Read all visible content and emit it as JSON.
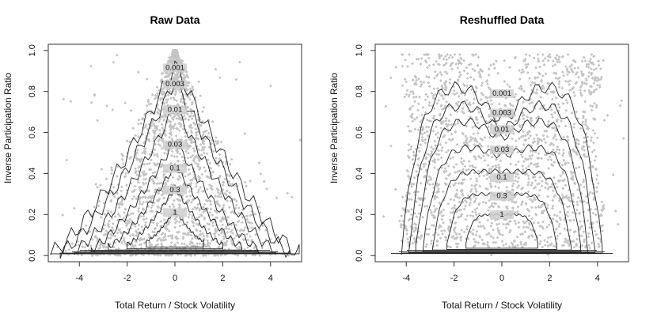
{
  "chart_data": [
    {
      "type": "scatter",
      "title": "Raw Data",
      "xlabel": "Total Return / Stock Volatility",
      "ylabel": "Inverse Participation Ratio",
      "xlim": [
        -5.3,
        5.3
      ],
      "ylim": [
        -0.03,
        1.03
      ],
      "xticks": [
        -4,
        -2,
        0,
        2,
        4
      ],
      "xtick_labels": [
        "-4",
        "-2",
        "0",
        "2",
        "4"
      ],
      "yticks": [
        0.0,
        0.2,
        0.4,
        0.6,
        0.8,
        1.0
      ],
      "ytick_labels": [
        "0.0",
        "0.2",
        "0.4",
        "0.6",
        "0.8",
        "1.0"
      ],
      "point_color": "#c4c4c4",
      "contour_color": "#222222",
      "contours": [
        {
          "level": "1",
          "label_x": 0.0,
          "label_y": 0.2
        },
        {
          "level": "0.3",
          "label_x": 0.0,
          "label_y": 0.31
        },
        {
          "level": "0.1",
          "label_x": 0.0,
          "label_y": 0.415
        },
        {
          "level": "0.03",
          "label_x": 0.0,
          "label_y": 0.53
        },
        {
          "level": "0.01",
          "label_x": 0.0,
          "label_y": 0.7
        },
        {
          "level": "0.003",
          "label_x": 0.0,
          "label_y": 0.825
        },
        {
          "level": "0.001",
          "label_x": 0.0,
          "label_y": 0.905
        }
      ]
    },
    {
      "type": "scatter",
      "title": "Reshuffled Data",
      "xlabel": "Total Return / Stock Volatility",
      "ylabel": "Inverse Participation Ratio",
      "xlim": [
        -5.3,
        5.3
      ],
      "ylim": [
        -0.03,
        1.03
      ],
      "xticks": [
        -4,
        -2,
        0,
        2,
        4
      ],
      "xtick_labels": [
        "-4",
        "-2",
        "0",
        "2",
        "4"
      ],
      "yticks": [
        0.0,
        0.2,
        0.4,
        0.6,
        0.8,
        1.0
      ],
      "ytick_labels": [
        "0.0",
        "0.2",
        "0.4",
        "0.6",
        "0.8",
        "1.0"
      ],
      "point_color": "#c4c4c4",
      "contour_color": "#222222",
      "contours": [
        {
          "level": "1",
          "label_x": 0.0,
          "label_y": 0.19
        },
        {
          "level": "0.3",
          "label_x": 0.0,
          "label_y": 0.28
        },
        {
          "level": "0.1",
          "label_x": 0.0,
          "label_y": 0.37
        },
        {
          "level": "0.03",
          "label_x": 0.0,
          "label_y": 0.505
        },
        {
          "level": "0.01",
          "label_x": 0.0,
          "label_y": 0.605
        },
        {
          "level": "0.003",
          "label_x": 0.0,
          "label_y": 0.685
        },
        {
          "level": "0.001",
          "label_x": 0.0,
          "label_y": 0.78
        }
      ]
    }
  ]
}
